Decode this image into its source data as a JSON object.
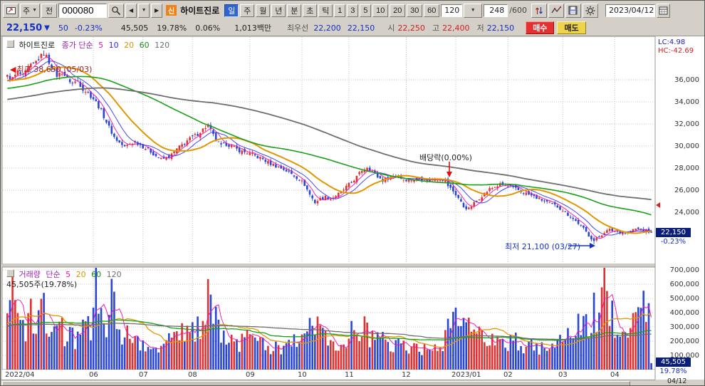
{
  "toolbar": {
    "period_combo": "주",
    "prev_button": "전",
    "code": "000080",
    "new_badge": "신",
    "stock_name": "하이트진로",
    "period_tabs": [
      "일",
      "주",
      "월",
      "년",
      "분",
      "초",
      "틱"
    ],
    "intervals": [
      "1",
      "3",
      "5",
      "10",
      "20",
      "30",
      "60"
    ],
    "interval_value": "120",
    "bar_count": "248",
    "bar_total": "/600",
    "date": "2023/04/12"
  },
  "quote": {
    "price": "22,150",
    "arrow": "▼",
    "change": "50",
    "change_pct": "-0.23%",
    "volume": "45,505",
    "volume_ratio": "19.78%",
    "turnover": "0.06%",
    "value": "1,013백만",
    "best_label": "최우선",
    "best_ask": "22,200",
    "best_bid": "22,150",
    "open_label": "시",
    "open": "22,250",
    "high_label": "고",
    "high": "22,400",
    "low_label": "저",
    "low": "22,150",
    "buy": "매수",
    "sell": "매도"
  },
  "price_pane": {
    "name": "하이트진로",
    "legend_kind": "종가 단순",
    "ma_labels": [
      "5",
      "10",
      "20",
      "60",
      "120"
    ],
    "high_annotation": "최고 38,650 (05/03)",
    "exdiv_annotation": "배당락(0.00%)",
    "low_annotation": "최저 21,100 (03/27)",
    "lc": "LC:4.98",
    "hc": "HC:-42.69",
    "axis_labels": [
      "36,000",
      "34,000",
      "32,000",
      "30,000",
      "28,000",
      "26,000",
      "24,000"
    ],
    "badge_price": "22,150",
    "badge_pct": "-0.23%"
  },
  "volume_pane": {
    "name": "거래량",
    "legend_kind": "단순",
    "ma_labels": [
      "5",
      "20",
      "60",
      "120"
    ],
    "current": "45,505주(19.78%)",
    "axis_labels": [
      "700,000",
      "600,000",
      "500,000",
      "400,000",
      "300,000",
      "200,000",
      "100,000"
    ],
    "badge_volume": "45,505",
    "badge_pct": "19.78%"
  },
  "x_axis": {
    "labels": [
      "2022/04",
      "06",
      "07",
      "08",
      "09",
      "10",
      "11",
      "12",
      "2023/01",
      "02",
      "03",
      "04"
    ],
    "corner": "04/12"
  },
  "chart_data": {
    "type": "candlestick+volume",
    "bars": 248,
    "start_label": "2022/04",
    "end_label": "2023/04/12",
    "price_axis_range": [
      24000,
      36000
    ],
    "gridline_step": 2000,
    "volume_axis_max": 700000,
    "last": {
      "open": 22250,
      "high": 22400,
      "low": 22150,
      "close": 22150,
      "volume": 45505
    },
    "extremes": {
      "high": {
        "value": 38650,
        "index": 14,
        "date": "05/03"
      },
      "low": {
        "value": 21100,
        "index": 225,
        "date": "03/27"
      }
    },
    "exdiv_index": 169,
    "month_ticks": [
      33,
      52,
      71,
      93,
      113,
      131,
      153,
      172,
      192,
      213,
      233
    ],
    "close_anchors": [
      [
        0,
        36300
      ],
      [
        2,
        36100
      ],
      [
        4,
        36700
      ],
      [
        6,
        36300
      ],
      [
        8,
        37100
      ],
      [
        10,
        37400
      ],
      [
        12,
        37900
      ],
      [
        14,
        38400
      ],
      [
        15,
        38100
      ],
      [
        17,
        37100
      ],
      [
        19,
        36400
      ],
      [
        21,
        36700
      ],
      [
        23,
        36100
      ],
      [
        25,
        35700
      ],
      [
        27,
        35900
      ],
      [
        29,
        35200
      ],
      [
        31,
        34800
      ],
      [
        33,
        34300
      ],
      [
        35,
        33600
      ],
      [
        37,
        32700
      ],
      [
        39,
        31700
      ],
      [
        41,
        30800
      ],
      [
        43,
        30300
      ],
      [
        45,
        29900
      ],
      [
        47,
        30200
      ],
      [
        49,
        30400
      ],
      [
        51,
        30100
      ],
      [
        53,
        29800
      ],
      [
        55,
        29500
      ],
      [
        57,
        29100
      ],
      [
        59,
        28800
      ],
      [
        61,
        28900
      ],
      [
        63,
        29200
      ],
      [
        65,
        29700
      ],
      [
        67,
        30100
      ],
      [
        69,
        30500
      ],
      [
        71,
        30800
      ],
      [
        73,
        31100
      ],
      [
        75,
        31500
      ],
      [
        77,
        31900
      ],
      [
        78,
        31400
      ],
      [
        80,
        30500
      ],
      [
        82,
        30000
      ],
      [
        84,
        30200
      ],
      [
        86,
        30000
      ],
      [
        88,
        29700
      ],
      [
        90,
        29500
      ],
      [
        92,
        29400
      ],
      [
        94,
        29200
      ],
      [
        96,
        29000
      ],
      [
        98,
        28800
      ],
      [
        100,
        28500
      ],
      [
        102,
        28300
      ],
      [
        104,
        28100
      ],
      [
        106,
        27900
      ],
      [
        108,
        27600
      ],
      [
        110,
        27300
      ],
      [
        112,
        27000
      ],
      [
        114,
        26500
      ],
      [
        116,
        25600
      ],
      [
        118,
        24900
      ],
      [
        120,
        25200
      ],
      [
        122,
        25400
      ],
      [
        124,
        25200
      ],
      [
        126,
        25500
      ],
      [
        128,
        25800
      ],
      [
        130,
        26300
      ],
      [
        132,
        26700
      ],
      [
        134,
        27200
      ],
      [
        136,
        27800
      ],
      [
        138,
        28100
      ],
      [
        140,
        27700
      ],
      [
        142,
        27200
      ],
      [
        144,
        26900
      ],
      [
        146,
        27100
      ],
      [
        148,
        27300
      ],
      [
        150,
        27200
      ],
      [
        152,
        27000
      ],
      [
        154,
        26900
      ],
      [
        156,
        27000
      ],
      [
        158,
        27100
      ],
      [
        160,
        27000
      ],
      [
        162,
        26900
      ],
      [
        164,
        27000
      ],
      [
        166,
        27100
      ],
      [
        168,
        26900
      ],
      [
        169,
        26400
      ],
      [
        171,
        25900
      ],
      [
        173,
        25300
      ],
      [
        175,
        24500
      ],
      [
        177,
        24300
      ],
      [
        179,
        24800
      ],
      [
        181,
        25300
      ],
      [
        183,
        25700
      ],
      [
        185,
        26100
      ],
      [
        187,
        26300
      ],
      [
        189,
        26500
      ],
      [
        191,
        26400
      ],
      [
        193,
        26300
      ],
      [
        195,
        26100
      ],
      [
        197,
        25900
      ],
      [
        199,
        25700
      ],
      [
        201,
        25500
      ],
      [
        203,
        25300
      ],
      [
        205,
        25100
      ],
      [
        207,
        24900
      ],
      [
        209,
        24700
      ],
      [
        211,
        24500
      ],
      [
        213,
        24200
      ],
      [
        215,
        23800
      ],
      [
        217,
        23400
      ],
      [
        219,
        23000
      ],
      [
        221,
        22500
      ],
      [
        223,
        21900
      ],
      [
        225,
        21400
      ],
      [
        227,
        21800
      ],
      [
        229,
        22200
      ],
      [
        231,
        22400
      ],
      [
        233,
        22300
      ],
      [
        235,
        22200
      ],
      [
        237,
        22100
      ],
      [
        239,
        22300
      ],
      [
        241,
        22500
      ],
      [
        243,
        22400
      ],
      [
        245,
        22300
      ],
      [
        247,
        22150
      ]
    ],
    "volume_anchors": [
      [
        0,
        300000
      ],
      [
        2,
        520000
      ],
      [
        3,
        650000
      ],
      [
        5,
        380000
      ],
      [
        7,
        300000
      ],
      [
        9,
        420000
      ],
      [
        11,
        350000
      ],
      [
        14,
        500000
      ],
      [
        16,
        300000
      ],
      [
        18,
        260000
      ],
      [
        20,
        300000
      ],
      [
        23,
        240000
      ],
      [
        26,
        220000
      ],
      [
        29,
        260000
      ],
      [
        32,
        300000
      ],
      [
        34,
        700000
      ],
      [
        36,
        420000
      ],
      [
        38,
        350000
      ],
      [
        40,
        500000
      ],
      [
        42,
        380000
      ],
      [
        44,
        280000
      ],
      [
        47,
        220000
      ],
      [
        50,
        200000
      ],
      [
        53,
        180000
      ],
      [
        56,
        170000
      ],
      [
        59,
        190000
      ],
      [
        62,
        210000
      ],
      [
        65,
        230000
      ],
      [
        68,
        250000
      ],
      [
        71,
        270000
      ],
      [
        74,
        300000
      ],
      [
        77,
        580000
      ],
      [
        79,
        420000
      ],
      [
        81,
        300000
      ],
      [
        84,
        240000
      ],
      [
        87,
        200000
      ],
      [
        90,
        190000
      ],
      [
        93,
        210000
      ],
      [
        96,
        180000
      ],
      [
        99,
        170000
      ],
      [
        102,
        160000
      ],
      [
        105,
        170000
      ],
      [
        108,
        180000
      ],
      [
        111,
        200000
      ],
      [
        114,
        280000
      ],
      [
        116,
        330000
      ],
      [
        118,
        300000
      ],
      [
        121,
        220000
      ],
      [
        124,
        190000
      ],
      [
        127,
        210000
      ],
      [
        130,
        240000
      ],
      [
        133,
        260000
      ],
      [
        136,
        290000
      ],
      [
        139,
        250000
      ],
      [
        142,
        220000
      ],
      [
        145,
        200000
      ],
      [
        148,
        190000
      ],
      [
        151,
        170000
      ],
      [
        154,
        160000
      ],
      [
        157,
        150000
      ],
      [
        160,
        140000
      ],
      [
        163,
        150000
      ],
      [
        166,
        160000
      ],
      [
        169,
        260000
      ],
      [
        171,
        300000
      ],
      [
        173,
        340000
      ],
      [
        175,
        380000
      ],
      [
        177,
        300000
      ],
      [
        179,
        260000
      ],
      [
        181,
        240000
      ],
      [
        184,
        220000
      ],
      [
        187,
        230000
      ],
      [
        190,
        210000
      ],
      [
        193,
        200000
      ],
      [
        196,
        190000
      ],
      [
        199,
        180000
      ],
      [
        202,
        170000
      ],
      [
        205,
        160000
      ],
      [
        208,
        170000
      ],
      [
        211,
        190000
      ],
      [
        214,
        230000
      ],
      [
        217,
        260000
      ],
      [
        220,
        300000
      ],
      [
        223,
        360000
      ],
      [
        225,
        420000
      ],
      [
        227,
        380000
      ],
      [
        229,
        560000
      ],
      [
        231,
        480000
      ],
      [
        233,
        340000
      ],
      [
        235,
        300000
      ],
      [
        237,
        280000
      ],
      [
        239,
        320000
      ],
      [
        241,
        360000
      ],
      [
        243,
        420000
      ],
      [
        245,
        450000
      ],
      [
        246,
        400000
      ],
      [
        247,
        45505
      ]
    ],
    "ma_price": {
      "periods": [
        5,
        10,
        20,
        60,
        120
      ],
      "colors": [
        "#f20db4",
        "#3535f0",
        "#e09800",
        "#18a018",
        "#6e6e6e"
      ],
      "widths": [
        0.9,
        0.9,
        2,
        1.6,
        1.8
      ]
    },
    "ma_volume": {
      "periods": [
        5,
        20,
        60,
        120
      ],
      "colors": [
        "#f20db4",
        "#e09800",
        "#18a018",
        "#6e6e6e"
      ],
      "widths": [
        0.9,
        1.3,
        1.3,
        1.3
      ]
    },
    "colors": {
      "up": "#e03232",
      "down": "#2a46d4",
      "grid": "#c4c4c4",
      "badge_bg": "#0a1e7a"
    }
  }
}
